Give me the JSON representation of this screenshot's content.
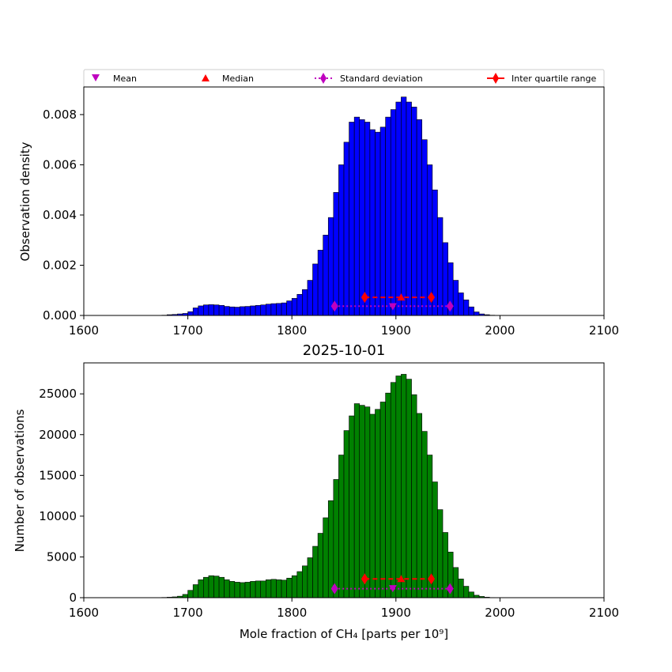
{
  "chart_data": [
    {
      "type": "bar",
      "panel": "top",
      "title": "",
      "xlabel": "",
      "ylabel": "Observation density",
      "xlim": [
        1600,
        2100
      ],
      "ylim": [
        0,
        0.0091
      ],
      "xticks": [
        "1600",
        "1700",
        "1800",
        "1900",
        "2000",
        "2100"
      ],
      "yticks": [
        "0.000",
        "0.002",
        "0.004",
        "0.006",
        "0.008"
      ],
      "bar_color": "#0000ff",
      "bin_start": 1675,
      "bin_width": 5,
      "values": [
        1e-05,
        3e-05,
        4e-05,
        6e-05,
        8e-05,
        0.00015,
        0.0003,
        0.00038,
        0.00042,
        0.00043,
        0.00042,
        0.0004,
        0.00036,
        0.00034,
        0.00033,
        0.00035,
        0.00036,
        0.00038,
        0.0004,
        0.00042,
        0.00045,
        0.00047,
        0.00048,
        0.0005,
        0.00058,
        0.00068,
        0.00084,
        0.00103,
        0.0014,
        0.00205,
        0.0026,
        0.0032,
        0.0039,
        0.0049,
        0.006,
        0.0069,
        0.0077,
        0.0079,
        0.0078,
        0.0077,
        0.0074,
        0.0073,
        0.0075,
        0.0079,
        0.0082,
        0.0085,
        0.0087,
        0.0085,
        0.0083,
        0.0078,
        0.007,
        0.006,
        0.005,
        0.0039,
        0.0029,
        0.0021,
        0.0014,
        0.0009,
        0.00062,
        0.00034,
        0.00014,
        6e-05,
        3e-05,
        1e-05,
        3e-06,
        1e-06
      ],
      "markers": {
        "mean": {
          "x": 1897,
          "y": 0.00033
        },
        "median": {
          "x": 1905,
          "y": 0.00072
        },
        "std_dev": {
          "x1": 1841,
          "x2": 1952,
          "y": 0.00037
        },
        "iqr": {
          "x1": 1870,
          "x2": 1934,
          "y": 0.00072
        }
      }
    },
    {
      "type": "bar",
      "panel": "bottom",
      "title": "2025-10-01",
      "xlabel": "Mole fraction of CH₄ [parts per 10⁹]",
      "ylabel": "Number of observations",
      "xlim": [
        1600,
        2100
      ],
      "ylim": [
        0,
        28800
      ],
      "xticks": [
        "1600",
        "1700",
        "1800",
        "1900",
        "2000",
        "2100"
      ],
      "yticks": [
        "0",
        "5000",
        "10000",
        "15000",
        "20000",
        "25000"
      ],
      "bar_color": "#008000",
      "bin_start": 1675,
      "bin_width": 5,
      "values": [
        30,
        60,
        100,
        180,
        400,
        900,
        1600,
        2200,
        2500,
        2700,
        2650,
        2500,
        2200,
        2000,
        1900,
        1850,
        1900,
        2000,
        2050,
        2050,
        2200,
        2250,
        2200,
        2150,
        2400,
        2700,
        3200,
        3900,
        4900,
        6300,
        7900,
        9800,
        11900,
        14500,
        17500,
        20500,
        22300,
        23800,
        23600,
        23400,
        22500,
        23100,
        24000,
        25100,
        26400,
        27200,
        27400,
        26800,
        24900,
        22600,
        20400,
        17500,
        14200,
        10800,
        8000,
        5600,
        3700,
        2300,
        1400,
        700,
        300,
        150,
        60,
        20,
        10,
        5
      ],
      "markers": {
        "mean": {
          "x": 1897,
          "y": 1050
        },
        "median": {
          "x": 1905,
          "y": 2300
        },
        "std_dev": {
          "x1": 1841,
          "x2": 1952,
          "y": 1100
        },
        "iqr": {
          "x1": 1870,
          "x2": 1934,
          "y": 2300
        }
      }
    }
  ],
  "legend": {
    "placement": "top",
    "items": [
      {
        "label": "Mean",
        "marker": "triangle-down",
        "color": "#bf00bf"
      },
      {
        "label": "Median",
        "marker": "triangle-up",
        "color": "#ff0000"
      },
      {
        "label": "Standard deviation",
        "marker": "diamond-dotted",
        "color": "#bf00bf"
      },
      {
        "label": "Inter quartile range",
        "marker": "diamond-line",
        "color": "#ff0000"
      }
    ]
  }
}
